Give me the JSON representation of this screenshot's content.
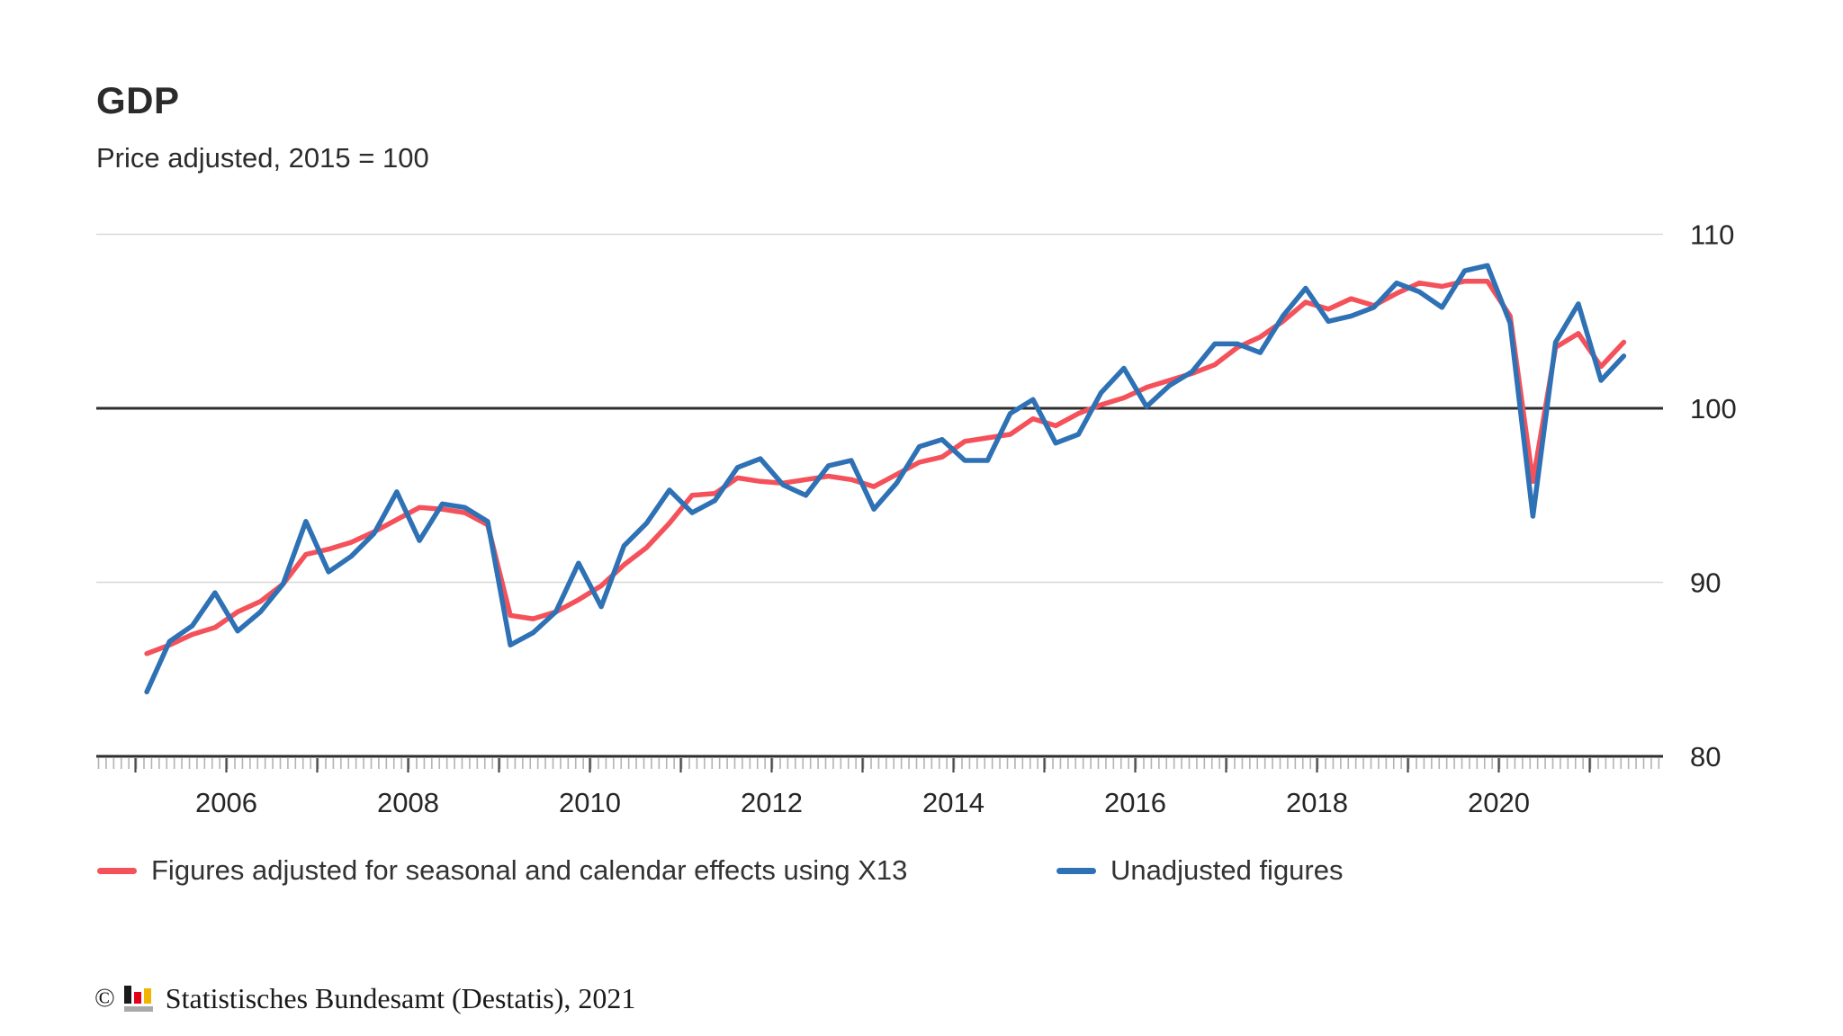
{
  "title": "GDP",
  "subtitle": "Price adjusted, 2015 = 100",
  "legend": [
    {
      "label": "Figures adjusted for seasonal and calendar effects using X13",
      "color": "#f4515a"
    },
    {
      "label": "Unadjusted figures",
      "color": "#2e71b4"
    }
  ],
  "footer": {
    "copyright_symbol": "©",
    "logo_icon": "destatis-bar-chart-icon",
    "text": "Statistisches Bundesamt (Destatis), 2021"
  },
  "colors": {
    "adjusted_line": "#f4515a",
    "unadjusted_line": "#2e71b4",
    "grid_light": "#d8d8d8",
    "grid_dark": "#2e2e2e",
    "axis_dark": "#2e2e2e",
    "tick_minor": "#b3b3b3",
    "tick_major": "#4a4a4a",
    "axis_text": "#262626"
  },
  "chart_data": {
    "type": "line",
    "title": "GDP",
    "subtitle": "Price adjusted, 2015 = 100",
    "x_frequency": "quarterly",
    "x_start": "2005 Q1",
    "x_end": "2021 Q2",
    "x_first_year": 2005,
    "x_last_year": 2021,
    "x_tick_label_years": [
      2006,
      2008,
      2010,
      2012,
      2014,
      2016,
      2018,
      2020
    ],
    "ylim": [
      80,
      110
    ],
    "yticks": [
      80,
      90,
      100,
      110
    ],
    "reference_line_value": 100,
    "grid": "horizontal-only",
    "legend_position": "bottom",
    "series": [
      {
        "name": "Figures adjusted for seasonal and calendar effects using X13",
        "color": "#f4515a",
        "values": [
          85.9,
          86.4,
          87.0,
          87.4,
          88.3,
          88.9,
          89.9,
          91.6,
          91.9,
          92.3,
          92.9,
          93.6,
          94.3,
          94.2,
          94.0,
          93.3,
          88.1,
          87.9,
          88.3,
          89.0,
          89.8,
          91.0,
          92.0,
          93.4,
          95.0,
          95.1,
          96.0,
          95.8,
          95.7,
          95.9,
          96.1,
          95.9,
          95.5,
          96.2,
          96.9,
          97.2,
          98.1,
          98.3,
          98.5,
          99.4,
          99.0,
          99.7,
          100.2,
          100.6,
          101.2,
          101.6,
          102.0,
          102.5,
          103.5,
          104.1,
          105.0,
          106.1,
          105.7,
          106.3,
          105.9,
          106.6,
          107.2,
          107.0,
          107.3,
          107.3,
          105.3,
          95.8,
          103.5,
          104.3,
          102.4,
          103.8
        ]
      },
      {
        "name": "Unadjusted figures",
        "color": "#2e71b4",
        "values": [
          83.7,
          86.6,
          87.5,
          89.4,
          87.2,
          88.3,
          89.9,
          93.5,
          90.6,
          91.5,
          92.8,
          95.2,
          92.4,
          94.5,
          94.3,
          93.5,
          86.4,
          87.1,
          88.3,
          91.1,
          88.6,
          92.1,
          93.4,
          95.3,
          94.0,
          94.7,
          96.6,
          97.1,
          95.6,
          95.0,
          96.7,
          97.0,
          94.2,
          95.7,
          97.8,
          98.2,
          97.0,
          97.0,
          99.7,
          100.5,
          98.0,
          98.5,
          100.9,
          102.3,
          100.1,
          101.3,
          102.1,
          103.7,
          103.7,
          103.2,
          105.3,
          106.9,
          105.0,
          105.3,
          105.8,
          107.2,
          106.7,
          105.8,
          107.9,
          108.2,
          104.9,
          93.8,
          103.8,
          106.0,
          101.6,
          103.0
        ]
      }
    ]
  }
}
